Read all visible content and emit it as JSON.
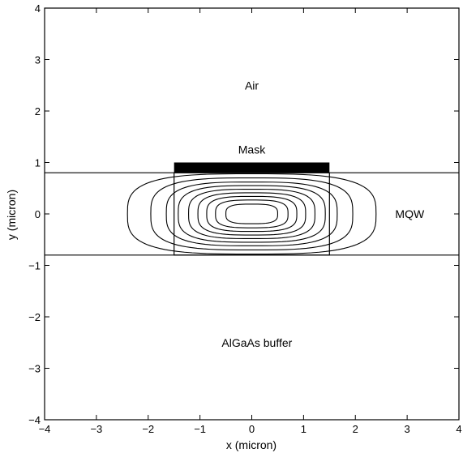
{
  "chart_data": {
    "type": "contour",
    "xlabel": "x (micron)",
    "ylabel": "y (micron)",
    "xlim": [
      -4,
      4
    ],
    "ylim": [
      -4,
      4
    ],
    "xticks": [
      -4,
      -3,
      -2,
      -1,
      0,
      1,
      2,
      3,
      4
    ],
    "yticks": [
      -4,
      -3,
      -2,
      -1,
      0,
      1,
      2,
      3,
      4
    ],
    "grid": false,
    "layers": {
      "mqw_top_y": 0.8,
      "mqw_bottom_y": -0.8
    },
    "ridge": {
      "x": [
        -1.5,
        1.5
      ],
      "y": [
        -0.8,
        0.8
      ]
    },
    "mask": {
      "x": [
        -1.5,
        1.5
      ],
      "y": [
        0.8,
        1.0
      ]
    },
    "contours": [
      {
        "rx": 2.4,
        "ry": 0.78
      },
      {
        "rx": 1.95,
        "ry": 0.7
      },
      {
        "rx": 1.65,
        "ry": 0.62
      },
      {
        "rx": 1.42,
        "ry": 0.55
      },
      {
        "rx": 1.22,
        "ry": 0.48
      },
      {
        "rx": 1.04,
        "ry": 0.41
      },
      {
        "rx": 0.87,
        "ry": 0.34
      },
      {
        "rx": 0.7,
        "ry": 0.27
      },
      {
        "rx": 0.5,
        "ry": 0.19
      }
    ],
    "annotations": [
      {
        "text": "Air",
        "x": 0,
        "y": 2.5
      },
      {
        "text": "Mask",
        "x": 0,
        "y": 1.25
      },
      {
        "text": "MQW",
        "x": 3.05,
        "y": 0
      },
      {
        "text": "AlGaAs buffer",
        "x": 0.1,
        "y": -2.5
      }
    ]
  }
}
